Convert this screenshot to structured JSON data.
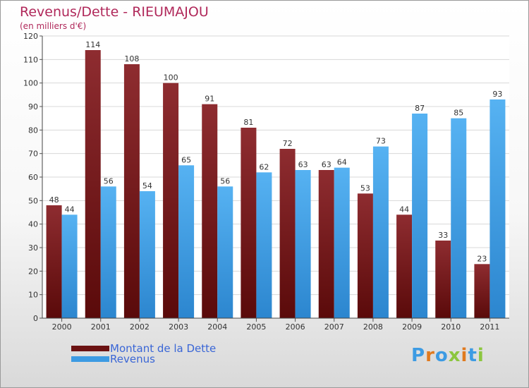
{
  "header": {
    "title": "Revenus/Dette - RIEUMAJOU",
    "subtitle": "(en milliers d'€)"
  },
  "chart_data": {
    "type": "bar",
    "categories": [
      "2000",
      "2001",
      "2002",
      "2003",
      "2004",
      "2005",
      "2006",
      "2007",
      "2008",
      "2009",
      "2010",
      "2011"
    ],
    "series": [
      {
        "name": "Montant de la Dette",
        "color": "#7a1a1a",
        "values": [
          48,
          114,
          108,
          100,
          91,
          81,
          72,
          63,
          53,
          44,
          33,
          23
        ]
      },
      {
        "name": "Revenus",
        "color": "#3d9be3",
        "values": [
          44,
          56,
          54,
          65,
          56,
          62,
          63,
          64,
          73,
          87,
          85,
          93
        ]
      }
    ],
    "yticks": [
      0,
      10,
      20,
      30,
      40,
      50,
      60,
      70,
      80,
      90,
      100,
      110,
      120
    ],
    "ylim": [
      0,
      120
    ],
    "grid": true,
    "legend_position": "bottom-left",
    "data_labels": true
  },
  "legend": {
    "items": [
      {
        "label": "Montant de la Dette",
        "color": "#7a1a1a"
      },
      {
        "label": "Revenus",
        "color": "#3d9be3"
      }
    ]
  },
  "logo": {
    "text": "Proxiti",
    "letter_colors": [
      "#3d9be3",
      "#e07a1f",
      "#3d9be3",
      "#8cc63f",
      "#e07a1f",
      "#3d9be3",
      "#8cc63f"
    ]
  }
}
